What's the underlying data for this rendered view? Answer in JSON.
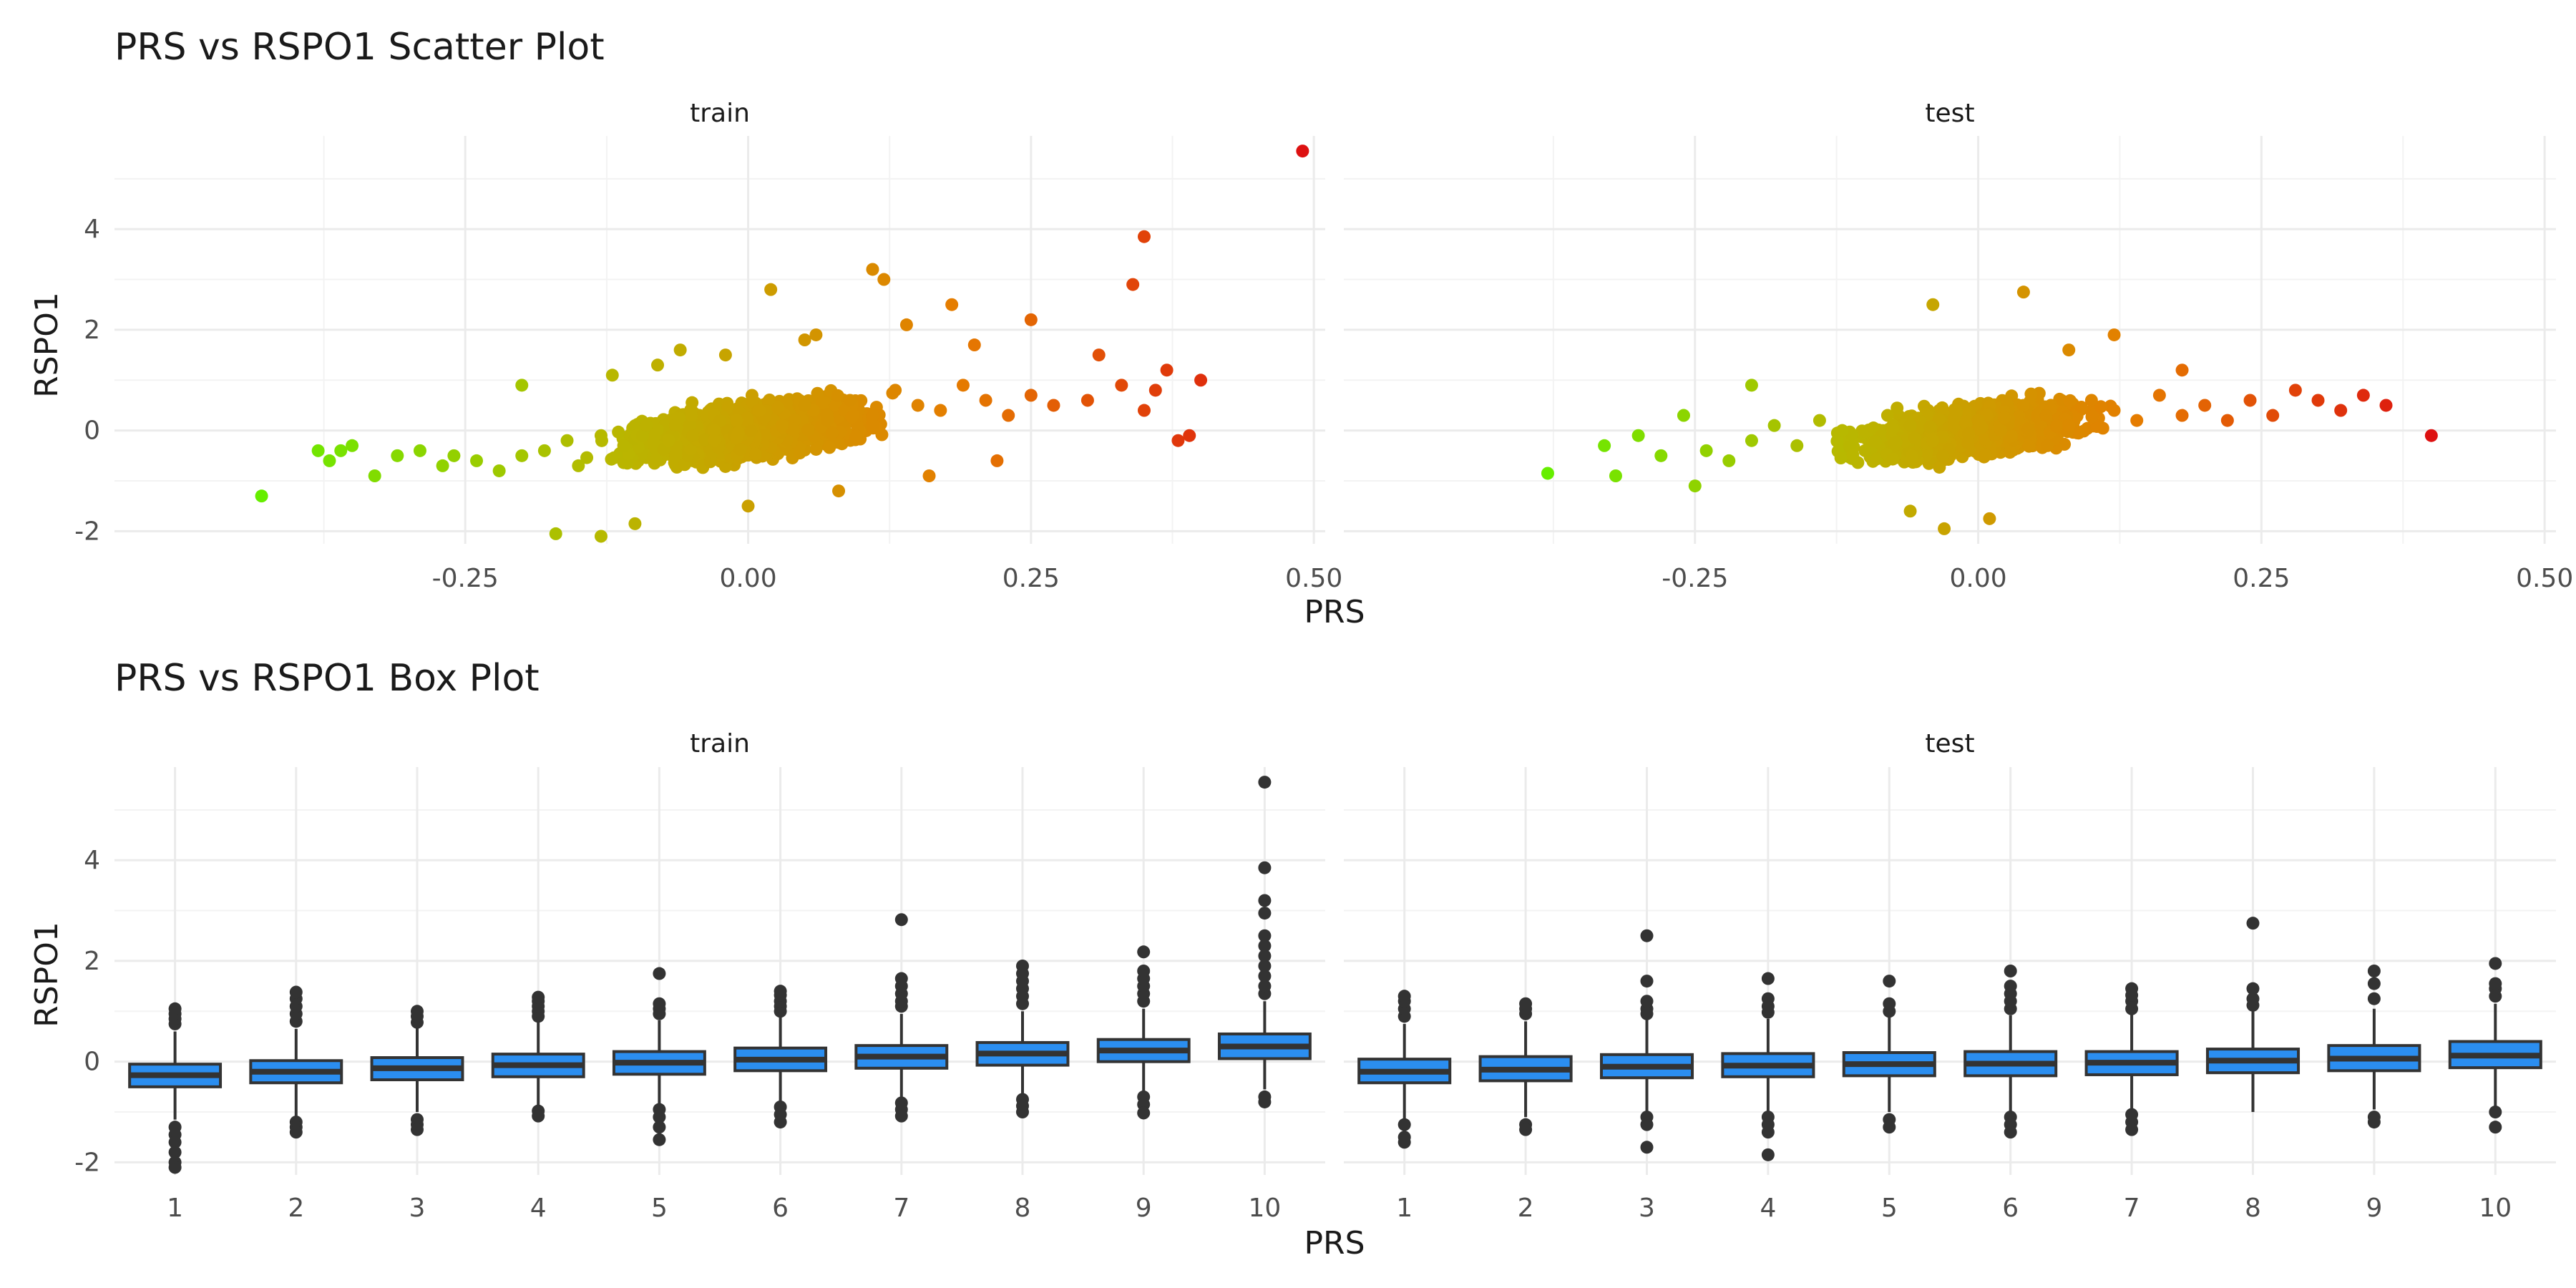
{
  "chart_data": [
    {
      "type": "scatter",
      "title": "PRS vs RSPO1 Scatter Plot",
      "xlabel": "PRS",
      "ylabel": "RSPO1",
      "xlim": [
        -0.56,
        0.51
      ],
      "ylim": [
        -2.25,
        5.85
      ],
      "x_ticks": [
        -0.25,
        0.0,
        0.25,
        0.5
      ],
      "x_tick_labels": [
        "-0.25",
        "0.00",
        "0.25",
        "0.50"
      ],
      "y_ticks": [
        -2,
        0,
        2,
        4
      ],
      "y_tick_labels": [
        "-2",
        "0",
        "2",
        "4"
      ],
      "grid": true,
      "color_gradient": [
        "#66ee00",
        "#b8b800",
        "#e57c00",
        "#dd1111"
      ],
      "panels": [
        {
          "strip": "train",
          "x": [
            -0.43,
            -0.38,
            -0.37,
            -0.36,
            -0.35,
            -0.33,
            -0.31,
            -0.29,
            -0.27,
            -0.26,
            -0.24,
            -0.22,
            -0.2,
            -0.18,
            -0.16,
            -0.15,
            -0.13,
            -0.11,
            -0.09,
            -0.07,
            -0.05,
            -0.03,
            -0.01,
            0.01,
            0.03,
            0.05,
            0.07,
            0.09,
            0.11,
            0.13,
            0.15,
            0.17,
            0.19,
            0.21,
            0.23,
            0.25,
            0.27,
            0.3,
            0.33,
            0.35,
            0.37,
            0.38,
            0.4,
            0.02,
            0.11,
            0.12,
            0.18,
            0.25,
            0.34,
            0.35,
            0.49,
            -0.17,
            -0.13,
            -0.1,
            0.0,
            -0.2,
            0.31,
            0.36,
            0.39,
            -0.12,
            -0.06,
            0.05,
            0.14,
            0.2,
            0.08,
            -0.02,
            0.22,
            -0.08,
            0.16,
            0.06
          ],
          "y": [
            -1.3,
            -0.4,
            -0.6,
            -0.4,
            -0.3,
            -0.9,
            -0.5,
            -0.4,
            -0.7,
            -0.5,
            -0.6,
            -0.8,
            -0.5,
            -0.4,
            -0.2,
            -0.7,
            -0.1,
            -0.3,
            0.1,
            -0.2,
            0.3,
            0.0,
            0.2,
            0.4,
            0.1,
            0.5,
            0.2,
            0.6,
            0.3,
            0.8,
            0.5,
            0.4,
            0.9,
            0.6,
            0.3,
            0.7,
            0.5,
            0.6,
            0.9,
            0.4,
            1.2,
            -0.2,
            1.0,
            2.8,
            3.2,
            3.0,
            2.5,
            2.2,
            2.9,
            3.85,
            5.55,
            -2.05,
            -2.1,
            -1.85,
            -1.5,
            0.9,
            1.5,
            0.8,
            -0.1,
            1.1,
            1.6,
            1.8,
            2.1,
            1.7,
            -1.2,
            1.5,
            -0.6,
            1.3,
            -0.9,
            1.9
          ]
        },
        {
          "strip": "test",
          "x": [
            -0.38,
            -0.33,
            -0.32,
            -0.3,
            -0.28,
            -0.26,
            -0.24,
            -0.22,
            -0.2,
            -0.18,
            -0.16,
            -0.14,
            -0.12,
            -0.1,
            -0.08,
            -0.06,
            -0.04,
            -0.02,
            0.0,
            0.02,
            0.04,
            0.06,
            0.08,
            0.1,
            0.12,
            0.14,
            0.16,
            0.18,
            0.2,
            0.22,
            0.24,
            0.26,
            0.28,
            0.3,
            0.32,
            0.34,
            0.36,
            0.4,
            -0.04,
            0.04,
            0.12,
            -0.03,
            0.01,
            -0.2,
            -0.25,
            0.08,
            -0.06,
            0.18
          ],
          "y": [
            -0.85,
            -0.3,
            -0.9,
            -0.1,
            -0.5,
            0.3,
            -0.4,
            -0.6,
            -0.2,
            0.1,
            -0.3,
            0.2,
            0.0,
            -0.4,
            0.3,
            0.1,
            -0.2,
            0.4,
            0.2,
            0.0,
            0.5,
            0.3,
            0.1,
            0.6,
            0.4,
            0.2,
            0.7,
            0.3,
            0.5,
            0.2,
            0.6,
            0.3,
            0.8,
            0.6,
            0.4,
            0.7,
            0.5,
            -0.1,
            2.5,
            2.75,
            1.9,
            -1.95,
            -1.75,
            0.9,
            -1.1,
            1.6,
            -1.6,
            1.2
          ]
        }
      ]
    },
    {
      "type": "box",
      "title": "PRS vs RSPO1 Box Plot",
      "xlabel": "PRS",
      "ylabel": "RSPO1",
      "ylim": [
        -2.25,
        5.85
      ],
      "y_ticks": [
        -2,
        0,
        2,
        4
      ],
      "y_tick_labels": [
        "-2",
        "0",
        "2",
        "4"
      ],
      "categories": [
        "1",
        "2",
        "3",
        "4",
        "5",
        "6",
        "7",
        "8",
        "9",
        "10"
      ],
      "fill": "#2b8ef0",
      "grid": true,
      "panels": [
        {
          "strip": "train",
          "boxes": [
            {
              "q1": -0.5,
              "median": -0.27,
              "q3": -0.05,
              "wlo": -1.15,
              "whi": 0.6,
              "outliers": [
                0.75,
                0.85,
                0.95,
                1.05,
                -1.3,
                -1.45,
                -1.6,
                -1.8,
                -2.0,
                -2.1
              ]
            },
            {
              "q1": -0.42,
              "median": -0.2,
              "q3": 0.02,
              "wlo": -1.1,
              "whi": 0.65,
              "outliers": [
                0.8,
                0.95,
                1.1,
                1.25,
                1.38,
                -1.2,
                -1.3,
                -1.4
              ]
            },
            {
              "q1": -0.36,
              "median": -0.13,
              "q3": 0.08,
              "wlo": -1.0,
              "whi": 0.7,
              "outliers": [
                0.78,
                0.9,
                1.0,
                -1.15,
                -1.25,
                -1.35
              ]
            },
            {
              "q1": -0.3,
              "median": -0.07,
              "q3": 0.15,
              "wlo": -0.9,
              "whi": 0.78,
              "outliers": [
                0.9,
                1.0,
                1.1,
                1.2,
                1.28,
                -0.98,
                -1.08
              ]
            },
            {
              "q1": -0.25,
              "median": -0.02,
              "q3": 0.2,
              "wlo": -0.88,
              "whi": 0.82,
              "outliers": [
                0.95,
                1.05,
                1.15,
                1.75,
                -0.95,
                -1.1,
                -1.3,
                -1.55
              ]
            },
            {
              "q1": -0.18,
              "median": 0.04,
              "q3": 0.27,
              "wlo": -0.8,
              "whi": 0.9,
              "outliers": [
                1.0,
                1.1,
                1.2,
                1.32,
                1.4,
                -0.9,
                -1.05,
                -1.2
              ]
            },
            {
              "q1": -0.13,
              "median": 0.1,
              "q3": 0.32,
              "wlo": -0.75,
              "whi": 0.95,
              "outliers": [
                1.1,
                1.2,
                1.35,
                1.5,
                1.65,
                2.82,
                -0.82,
                -0.95,
                -1.08
              ]
            },
            {
              "q1": -0.07,
              "median": 0.16,
              "q3": 0.38,
              "wlo": -0.65,
              "whi": 1.0,
              "outliers": [
                1.15,
                1.3,
                1.45,
                1.6,
                1.75,
                1.9,
                -0.75,
                -0.88,
                -1.0
              ]
            },
            {
              "q1": 0.0,
              "median": 0.22,
              "q3": 0.44,
              "wlo": -0.6,
              "whi": 1.05,
              "outliers": [
                1.2,
                1.35,
                1.5,
                1.65,
                1.8,
                2.18,
                -0.7,
                -0.85,
                -1.02
              ]
            },
            {
              "q1": 0.06,
              "median": 0.3,
              "q3": 0.55,
              "wlo": -0.55,
              "whi": 1.2,
              "outliers": [
                1.35,
                1.5,
                1.7,
                1.9,
                2.1,
                2.3,
                2.5,
                2.95,
                3.2,
                3.85,
                5.55,
                -0.7,
                -0.8
              ]
            }
          ]
        },
        {
          "strip": "test",
          "boxes": [
            {
              "q1": -0.42,
              "median": -0.2,
              "q3": 0.05,
              "wlo": -1.15,
              "whi": 0.75,
              "outliers": [
                0.9,
                1.05,
                1.2,
                1.3,
                -1.25,
                -1.5,
                -1.6
              ]
            },
            {
              "q1": -0.38,
              "median": -0.16,
              "q3": 0.1,
              "wlo": -1.1,
              "whi": 0.8,
              "outliers": [
                0.95,
                1.05,
                1.15,
                -1.25,
                -1.35
              ]
            },
            {
              "q1": -0.32,
              "median": -0.1,
              "q3": 0.14,
              "wlo": -1.0,
              "whi": 0.85,
              "outliers": [
                0.95,
                1.05,
                1.2,
                1.6,
                2.5,
                -1.1,
                -1.25,
                -1.7
              ]
            },
            {
              "q1": -0.3,
              "median": -0.08,
              "q3": 0.16,
              "wlo": -1.0,
              "whi": 0.85,
              "outliers": [
                0.98,
                1.1,
                1.25,
                1.65,
                -1.1,
                -1.25,
                -1.4,
                -1.85
              ]
            },
            {
              "q1": -0.28,
              "median": -0.05,
              "q3": 0.18,
              "wlo": -1.0,
              "whi": 0.9,
              "outliers": [
                1.0,
                1.15,
                1.6,
                -1.15,
                -1.3
              ]
            },
            {
              "q1": -0.28,
              "median": -0.04,
              "q3": 0.2,
              "wlo": -0.98,
              "whi": 0.92,
              "outliers": [
                1.05,
                1.2,
                1.35,
                1.5,
                1.8,
                -1.1,
                -1.25,
                -1.4
              ]
            },
            {
              "q1": -0.26,
              "median": -0.02,
              "q3": 0.2,
              "wlo": -0.95,
              "whi": 0.95,
              "outliers": [
                1.05,
                1.2,
                1.32,
                1.45,
                -1.05,
                -1.2,
                -1.35
              ]
            },
            {
              "q1": -0.22,
              "median": 0.02,
              "q3": 0.25,
              "wlo": -1.0,
              "whi": 1.0,
              "outliers": [
                1.12,
                1.25,
                1.45,
                2.75
              ]
            },
            {
              "q1": -0.18,
              "median": 0.06,
              "q3": 0.32,
              "wlo": -0.95,
              "whi": 1.05,
              "outliers": [
                1.25,
                1.55,
                1.8,
                -1.1,
                -1.2
              ]
            },
            {
              "q1": -0.12,
              "median": 0.12,
              "q3": 0.4,
              "wlo": -0.9,
              "whi": 1.15,
              "outliers": [
                1.3,
                1.45,
                1.55,
                1.95,
                -1.0,
                -1.3
              ]
            }
          ]
        }
      ]
    }
  ]
}
